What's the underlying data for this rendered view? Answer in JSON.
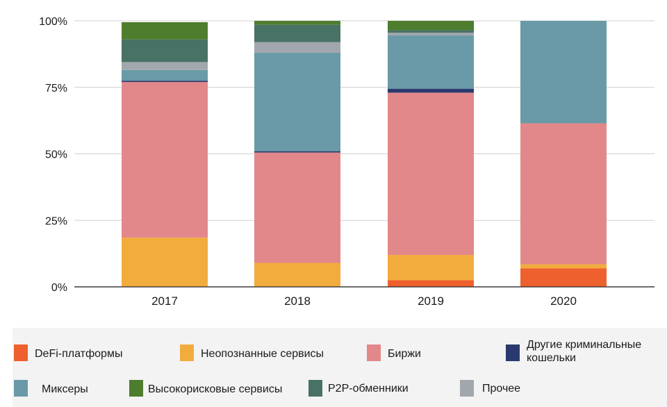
{
  "chart_data": {
    "type": "bar",
    "stacked": true,
    "normalized": true,
    "categories": [
      "2017",
      "2018",
      "2019",
      "2020"
    ],
    "yticks": [
      "0%",
      "25%",
      "50%",
      "75%",
      "100%"
    ],
    "ylim": [
      0,
      100
    ],
    "grid": true,
    "legend_position": "bottom",
    "series": [
      {
        "name": "DeFi-платформы",
        "color": "#ee602d",
        "values": [
          0,
          0,
          2.5,
          7
        ]
      },
      {
        "name": "Неопознанные сервисы",
        "color": "#f2ac3d",
        "values": [
          18.5,
          9,
          9.5,
          1.5
        ]
      },
      {
        "name": "Биржи",
        "color": "#e2888a",
        "values": [
          58.5,
          41.5,
          61,
          53
        ]
      },
      {
        "name": "Другие криминальные кошельки",
        "color": "#2b3a6e",
        "values": [
          0.5,
          0.5,
          1.5,
          0
        ]
      },
      {
        "name": "Миксеры",
        "color": "#6a9aa7",
        "values": [
          4,
          37,
          20,
          38.5
        ]
      },
      {
        "name": "Прочее",
        "color": "#a2a7ae",
        "values": [
          3,
          4,
          1,
          0
        ]
      },
      {
        "name": "P2P-обменники",
        "color": "#487265",
        "values": [
          8.5,
          6.5,
          1,
          0
        ]
      },
      {
        "name": "Высокорисковые сервисы",
        "color": "#4e7d2e",
        "values": [
          6.5,
          1.5,
          3.5,
          0
        ]
      }
    ]
  },
  "legend": [
    {
      "label": "DeFi-платформы",
      "color": "#ee602d"
    },
    {
      "label": "Неопознанные сервисы",
      "color": "#f2ac3d"
    },
    {
      "label": "Биржи",
      "color": "#e2888a"
    },
    {
      "label_line1": "Другие криминальные",
      "label_line2": "кошельки",
      "color": "#2b3a6e"
    },
    {
      "label": "Миксеры",
      "color": "#6a9aa7"
    },
    {
      "label": "Высокорисковые сервисы",
      "color": "#4e7d2e"
    },
    {
      "label": "P2P-обменники",
      "color": "#487265"
    },
    {
      "label": "Прочее",
      "color": "#a2a7ae"
    }
  ]
}
